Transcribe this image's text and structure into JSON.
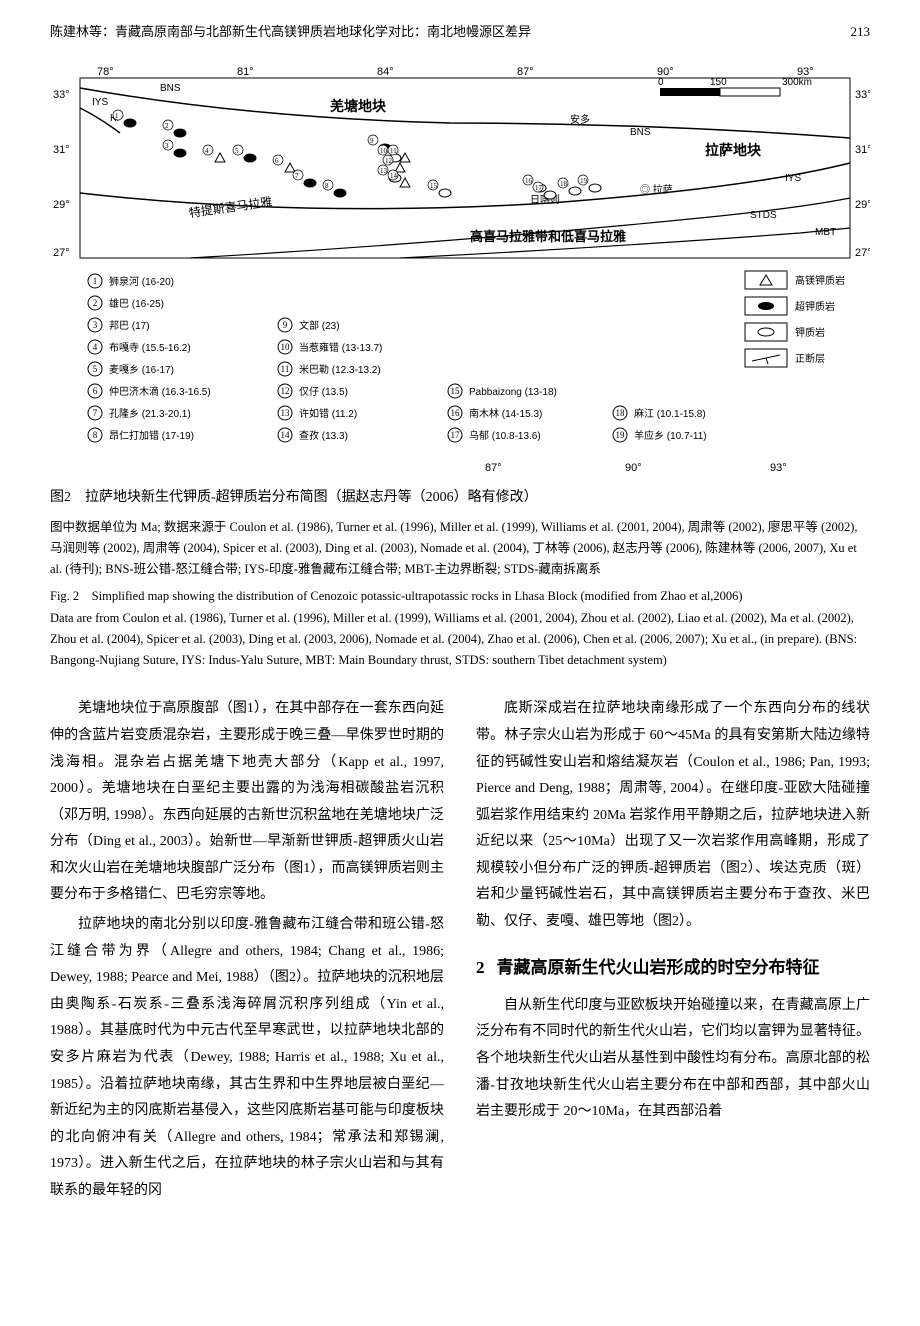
{
  "header": {
    "running_title": "陈建林等：青藏高原南部与北部新生代高镁钾质岩地球化学对比：南北地幔源区差异",
    "page_number": "213"
  },
  "figure": {
    "lon_ticks": [
      "78°",
      "81°",
      "84°",
      "87°",
      "90°",
      "93°"
    ],
    "lat_ticks": [
      "33°",
      "31°",
      "29°",
      "27°"
    ],
    "scale": {
      "label_0": "0",
      "label_150": "150",
      "label_300": "300km"
    },
    "regions": {
      "qiangtang": "羌塘地块",
      "lhasa": "拉萨地块",
      "tethys": "特提斯喜马拉雅",
      "himalaya": "高喜马拉雅带和低喜马拉雅",
      "ando": "安多",
      "lasa_city": "◎ 拉萨",
      "rikaze": "日喀则"
    },
    "sutures": {
      "bns1": "BNS",
      "bns2": "BNS",
      "iys1": "IYS",
      "iys2": "IYS",
      "kf": "KF",
      "stds": "STDS",
      "mbt": "MBT"
    },
    "legend_symbols": [
      {
        "label": "高镁钾质岩",
        "marker": "triangle"
      },
      {
        "label": "超钾质岩",
        "marker": "filled-oval"
      },
      {
        "label": "钾质岩",
        "marker": "outlined-oval-tick"
      },
      {
        "label": "正断层",
        "marker": "fault-line"
      }
    ],
    "localities_col1": [
      {
        "n": "1",
        "text": "狮泉河 (16-20)"
      },
      {
        "n": "2",
        "text": "雄巴 (16-25)"
      },
      {
        "n": "3",
        "text": "邦巴 (17)"
      },
      {
        "n": "4",
        "text": "布嘎寺 (15.5-16.2)"
      },
      {
        "n": "5",
        "text": "麦嘎乡 (16-17)"
      },
      {
        "n": "6",
        "text": "仲巴济木滴 (16.3-16.5)"
      },
      {
        "n": "7",
        "text": "孔隆乡 (21.3-20.1)"
      },
      {
        "n": "8",
        "text": "昂仁打加错 (17-19)"
      }
    ],
    "localities_col2": [
      {
        "n": "9",
        "text": "文部 (23)"
      },
      {
        "n": "10",
        "text": "当惹雍错 (13-13.7)"
      },
      {
        "n": "11",
        "text": "米巴勒 (12.3-13.2)"
      },
      {
        "n": "12",
        "text": "仅仔 (13.5)"
      },
      {
        "n": "13",
        "text": "许如错 (11.2)"
      },
      {
        "n": "14",
        "text": "查孜 (13.3)"
      }
    ],
    "localities_col3": [
      {
        "n": "15",
        "text": "Pabbaizong (13-18)"
      },
      {
        "n": "16",
        "text": "南木林 (14-15.3)"
      },
      {
        "n": "17",
        "text": "乌郁 (10.8-13.6)"
      }
    ],
    "localities_col4": [
      {
        "n": "18",
        "text": "麻江 (10.1-15.8)"
      },
      {
        "n": "19",
        "text": "羊应乡 (10.7-11)"
      }
    ],
    "caption_zh_title": "图2　拉萨地块新生代钾质-超钾质岩分布简图（据赵志丹等（2006）略有修改）",
    "caption_zh_detail": "图中数据单位为 Ma; 数据来源于 Coulon et al. (1986), Turner et al. (1996), Miller et al. (1999), Williams et al. (2001, 2004), 周肃等 (2002), 廖思平等 (2002), 马润则等 (2002), 周肃等 (2004), Spicer et al. (2003), Ding et al. (2003), Nomade et al. (2004), 丁林等 (2006), 赵志丹等 (2006), 陈建林等 (2006, 2007), Xu et al. (待刊); BNS-班公错-怒江缝合带; IYS-印度-雅鲁藏布江缝合带; MBT-主边界断裂; STDS-藏南拆离系",
    "caption_en_title": "Fig. 2　Simplified map showing the distribution of Cenozoic potassic-ultrapotassic rocks in Lhasa Block (modified from Zhao et al,2006)",
    "caption_en_detail": "Data are from Coulon et al. (1986), Turner et al. (1996), Miller et al. (1999), Williams et al. (2001, 2004), Zhou et al. (2002), Liao et al. (2002), Ma et al. (2002), Zhou et al. (2004), Spicer et al. (2003), Ding et al. (2003, 2006), Nomade et al. (2004), Zhao et al. (2006), Chen et al. (2006, 2007); Xu et al., (in prepare). (BNS: Bangong-Nujiang Suture, IYS: Indus-Yalu Suture, MBT: Main Boundary thrust, STDS: southern Tibet detachment system)"
  },
  "body": {
    "left_p1": "羌塘地块位于高原腹部（图1），在其中部存在一套东西向延伸的含蓝片岩变质混杂岩，主要形成于晚三叠—早侏罗世时期的浅海相。混杂岩占据羌塘下地壳大部分（Kapp et al., 1997, 2000）。羌塘地块在白垩纪主要出露的为浅海相碳酸盐岩沉积（邓万明, 1998）。东西向延展的古新世沉积盆地在羌塘地块广泛分布（Ding et al., 2003）。始新世—早渐新世钾质-超钾质火山岩和次火山岩在羌塘地块腹部广泛分布（图1），而高镁钾质岩则主要分布于多格错仁、巴毛穷宗等地。",
    "left_p2": "拉萨地块的南北分别以印度-雅鲁藏布江缝合带和班公错-怒江缝合带为界（Allegre and others, 1984; Chang et al., 1986; Dewey, 1988; Pearce and Mei, 1988）（图2）。拉萨地块的沉积地层由奥陶系-石炭系-三叠系浅海碎屑沉积序列组成（Yin et al., 1988）。其基底时代为中元古代至早寒武世，以拉萨地块北部的安多片麻岩为代表（Dewey, 1988; Harris et al., 1988; Xu et al., 1985）。沿着拉萨地块南缘，其古生界和中生界地层被白垩纪—新近纪为主的冈底斯岩基侵入，这些冈底斯岩基可能与印度板块的北向俯冲有关（Allegre and others, 1984；常承法和郑锡澜, 1973）。进入新生代之后，在拉萨地块的林子宗火山岩和与其有联系的最年轻的冈",
    "right_p1": "底斯深成岩在拉萨地块南缘形成了一个东西向分布的线状带。林子宗火山岩为形成于 60～45Ma 的具有安第斯大陆边缘特征的钙碱性安山岩和熔结凝灰岩（Coulon et al., 1986; Pan, 1993; Pierce and Deng, 1988；周肃等, 2004）。在继印度-亚欧大陆碰撞弧岩浆作用结束约 20Ma 岩浆作用平静期之后，拉萨地块进入新近纪以来（25～10Ma）出现了又一次岩浆作用高峰期，形成了规模较小但分布广泛的钾质-超钾质岩（图2）、埃达克质（斑）岩和少量钙碱性岩石，其中高镁钾质岩主要分布于查孜、米巴勒、仅仔、麦嘎、雄巴等地（图2）。",
    "section_number": "2",
    "section_title": "青藏高原新生代火山岩形成的时空分布特征",
    "right_p2": "自从新生代印度与亚欧板块开始碰撞以来，在青藏高原上广泛分布有不同时代的新生代火山岩，它们均以富钾为显著特征。各个地块新生代火山岩从基性到中酸性均有分布。高原北部的松潘-甘孜地块新生代火山岩主要分布在中部和西部，其中部火山岩主要形成于 20～10Ma，在其西部沿着"
  }
}
